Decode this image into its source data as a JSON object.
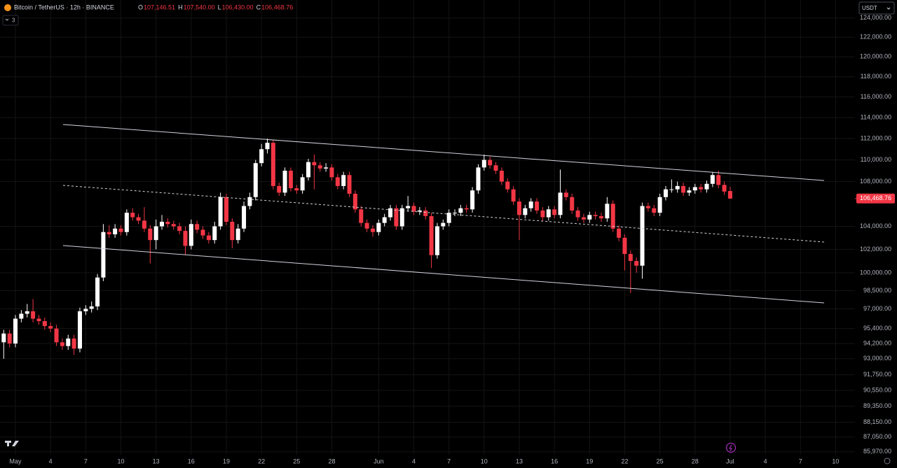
{
  "header": {
    "title": "Bitcoin / TetherUS · 12h · BINANCE",
    "ohlc": [
      {
        "key": "O",
        "value": "107,146.51"
      },
      {
        "key": "H",
        "value": "107,540.00"
      },
      {
        "key": "L",
        "value": "106,430.00"
      },
      {
        "key": "C",
        "value": "106,468.76"
      }
    ],
    "indicators": "3",
    "currency": "USDT"
  },
  "chart_data": {
    "type": "candlestick",
    "log_scale": true,
    "grid": true,
    "up_color": "#ffffff",
    "down_color": "#f23645",
    "categories": [
      null,
      null,
      "May",
      null,
      null,
      null,
      null,
      null,
      "4",
      null,
      null,
      null,
      null,
      null,
      "7",
      null,
      null,
      null,
      null,
      null,
      "10",
      null,
      null,
      null,
      null,
      null,
      "13",
      null,
      null,
      null,
      null,
      null,
      "16",
      null,
      null,
      null,
      null,
      null,
      "19",
      null,
      null,
      null,
      null,
      null,
      "22",
      null,
      null,
      null,
      null,
      null,
      "25",
      null,
      null,
      null,
      null,
      null,
      "28",
      null,
      null,
      null,
      null,
      null,
      null,
      null,
      "Jun",
      null,
      null,
      null,
      null,
      null,
      "4",
      null,
      null,
      null,
      null,
      null,
      "7",
      null,
      null,
      null,
      null,
      null,
      "10",
      null,
      null,
      null,
      null,
      null,
      "13",
      null,
      null,
      null,
      null,
      null,
      "16",
      null,
      null,
      null,
      null,
      null,
      "19",
      null,
      null,
      null,
      null,
      null,
      "22",
      null,
      null,
      null,
      null,
      null,
      "25",
      null,
      null,
      null,
      null,
      null,
      "28",
      null,
      null,
      null,
      null,
      null,
      "Jul",
      null,
      null,
      null,
      null,
      null,
      "4",
      null,
      null,
      null,
      null,
      null,
      "7",
      null,
      null,
      null,
      null,
      null,
      "10"
    ],
    "open": [
      94300,
      95000,
      94200,
      96200,
      96600,
      96800,
      96200,
      96000,
      95600,
      95400,
      94300,
      94000,
      94600,
      93800,
      96800,
      97000,
      97200,
      99600,
      103500,
      103300,
      103800,
      103500,
      105200,
      104800,
      104500,
      103800,
      102800,
      104000,
      104400,
      104200,
      104000,
      103600,
      102300,
      104200,
      103700,
      103200,
      102800,
      104000,
      106600,
      104400,
      102800,
      103800,
      105800,
      106600,
      109700,
      111000,
      111600,
      107600,
      107000,
      109000,
      107400,
      107200,
      108400,
      109800,
      109500,
      109200,
      109300,
      108400,
      107600,
      108600,
      106900,
      105500,
      104300,
      103800,
      103500,
      104300,
      104800,
      105600,
      104000,
      105600,
      105800,
      105300,
      105400,
      104900,
      101500,
      104000,
      104300,
      105200,
      105200,
      105600,
      105500,
      107200,
      109300,
      110000,
      109500,
      109000,
      108000,
      107300,
      106200,
      105000,
      105600,
      106200,
      105400,
      104800,
      105500,
      105000,
      107000,
      106600,
      105400,
      104800,
      104600,
      105000,
      104900,
      104700,
      106000,
      103800,
      103000,
      101600,
      101000,
      100600,
      105800,
      105600,
      105200,
      106600,
      107300,
      107300,
      107600,
      107000,
      107200,
      107500,
      107300,
      107800,
      108600,
      107700,
      107146.51,
      null,
      null,
      null,
      null,
      null,
      null,
      null,
      null,
      null,
      null,
      null,
      null,
      null,
      null,
      null,
      null,
      null,
      null
    ],
    "high": [
      95300,
      95300,
      96500,
      96900,
      97400,
      97800,
      96500,
      96300,
      95900,
      95700,
      94600,
      94900,
      94900,
      97100,
      97300,
      97600,
      99900,
      104200,
      104100,
      104200,
      104100,
      105500,
      105600,
      105100,
      105700,
      104100,
      104600,
      105000,
      104700,
      104500,
      104300,
      104000,
      104600,
      104500,
      104000,
      103500,
      104400,
      107000,
      106900,
      104700,
      104200,
      106200,
      107000,
      110000,
      111500,
      112000,
      111900,
      107900,
      109300,
      109300,
      107700,
      108700,
      110100,
      110500,
      109800,
      109700,
      109600,
      108700,
      108900,
      108900,
      107200,
      105800,
      104600,
      104100,
      104600,
      105100,
      105900,
      105900,
      105900,
      106700,
      106100,
      105700,
      105700,
      105200,
      104300,
      104600,
      105500,
      105500,
      105900,
      105900,
      107500,
      109600,
      110500,
      110300,
      109800,
      109300,
      108300,
      107600,
      106500,
      105900,
      106500,
      106500,
      105700,
      105800,
      105800,
      109100,
      107300,
      106900,
      105700,
      105100,
      105300,
      105300,
      105200,
      106600,
      106300,
      104100,
      103300,
      101900,
      101300,
      106100,
      106100,
      105900,
      106900,
      107600,
      108200,
      108000,
      107900,
      107500,
      107800,
      107800,
      108100,
      108900,
      109000,
      108000,
      107540,
      null,
      null,
      null,
      null,
      null,
      null,
      null,
      null,
      null,
      null,
      null,
      null,
      null,
      null,
      null,
      null,
      null,
      null
    ],
    "low": [
      93000,
      93900,
      93900,
      95900,
      96300,
      95900,
      95700,
      95300,
      95100,
      94000,
      93700,
      93700,
      93300,
      93500,
      96500,
      96700,
      96900,
      99300,
      103000,
      103000,
      103200,
      103200,
      104500,
      104200,
      103500,
      100800,
      102000,
      103700,
      103900,
      103700,
      103300,
      101500,
      102000,
      103400,
      102900,
      102500,
      102500,
      103700,
      104100,
      102100,
      102500,
      103500,
      105500,
      106300,
      109400,
      110600,
      107300,
      106700,
      106700,
      107100,
      106900,
      106900,
      108100,
      107300,
      108900,
      108900,
      108100,
      107300,
      107300,
      106600,
      105200,
      104000,
      103500,
      103100,
      103200,
      104000,
      104500,
      103700,
      103700,
      105300,
      105000,
      105000,
      104600,
      100400,
      101200,
      103700,
      104000,
      104900,
      104900,
      105200,
      105200,
      106900,
      109000,
      109200,
      108700,
      107700,
      107000,
      105900,
      102800,
      104700,
      105300,
      105100,
      104500,
      104500,
      104700,
      104700,
      106300,
      105100,
      104500,
      104300,
      104300,
      104600,
      104400,
      104400,
      103500,
      102700,
      100200,
      98300,
      100000,
      99500,
      105300,
      104900,
      104900,
      106300,
      107000,
      107000,
      106700,
      106700,
      106900,
      107000,
      107000,
      107500,
      107400,
      106800,
      106430,
      null,
      null,
      null,
      null,
      null,
      null,
      null,
      null,
      null,
      null,
      null,
      null,
      null,
      null,
      null,
      null,
      null,
      null
    ],
    "close": [
      95000,
      94200,
      96200,
      96600,
      96800,
      96200,
      96000,
      95600,
      95400,
      94300,
      94000,
      94600,
      93800,
      96800,
      97000,
      97200,
      99600,
      103500,
      103300,
      103800,
      103500,
      105200,
      104800,
      104500,
      103800,
      102800,
      104000,
      104400,
      104200,
      104000,
      103600,
      102300,
      104200,
      103700,
      103200,
      102800,
      104000,
      106600,
      104400,
      102800,
      103800,
      105800,
      106600,
      109700,
      111000,
      111600,
      107600,
      107000,
      109000,
      107400,
      107200,
      108400,
      109800,
      109500,
      109200,
      109300,
      108400,
      107600,
      108600,
      106900,
      105500,
      104300,
      103800,
      103500,
      104300,
      104800,
      105600,
      104000,
      105600,
      105800,
      105300,
      105400,
      104900,
      101500,
      104000,
      104300,
      105200,
      105200,
      105600,
      105500,
      107200,
      109300,
      110000,
      109500,
      109000,
      108000,
      107300,
      106200,
      105000,
      105600,
      106200,
      105400,
      104800,
      105500,
      105000,
      107000,
      106600,
      105400,
      104800,
      104600,
      105000,
      104900,
      104700,
      106000,
      103800,
      103000,
      101600,
      101000,
      100600,
      105800,
      105600,
      105200,
      106600,
      107300,
      107300,
      107600,
      107000,
      107200,
      107500,
      107300,
      107800,
      108600,
      107700,
      107100,
      106468.76,
      null,
      null,
      null,
      null,
      null,
      null,
      null,
      null,
      null,
      null,
      null,
      null,
      null,
      null,
      null,
      null,
      null,
      null
    ],
    "ylim": [
      85760,
      125900
    ],
    "yticks": [
      {
        "value": 124000,
        "label": "124,000.00"
      },
      {
        "value": 122000,
        "label": "122,000.00"
      },
      {
        "value": 120000,
        "label": "120,000.00"
      },
      {
        "value": 118000,
        "label": "118,000.00"
      },
      {
        "value": 116000,
        "label": "116,000.00"
      },
      {
        "value": 114000,
        "label": "114,000.00"
      },
      {
        "value": 112000,
        "label": "112,000.00"
      },
      {
        "value": 110000,
        "label": "110,000.00"
      },
      {
        "value": 108000,
        "label": "108,000.00"
      },
      {
        "value": 104000,
        "label": "104,000.00"
      },
      {
        "value": 102000,
        "label": "102,000.00"
      },
      {
        "value": 100000,
        "label": "100,000.00"
      },
      {
        "value": 98500,
        "label": "98,500.00"
      },
      {
        "value": 97000,
        "label": "97,000.00"
      },
      {
        "value": 95400,
        "label": "95,400.00"
      },
      {
        "value": 94200,
        "label": "94,200.00"
      },
      {
        "value": 93000,
        "label": "93,000.00"
      },
      {
        "value": 91750,
        "label": "91,750.00"
      },
      {
        "value": 90550,
        "label": "90,550.00"
      },
      {
        "value": 89350,
        "label": "89,350.00"
      },
      {
        "value": 88150,
        "label": "88,150.00"
      },
      {
        "value": 87050,
        "label": "87,050.00"
      },
      {
        "value": 85970,
        "label": "85,970.00"
      }
    ]
  }
}
